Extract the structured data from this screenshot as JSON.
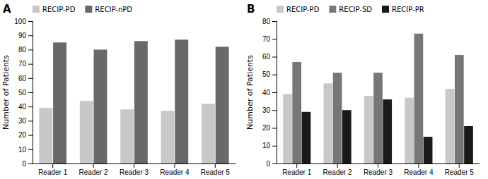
{
  "chart_data": [
    {
      "type": "bar",
      "title": "A",
      "categories": [
        "Reader 1",
        "Reader 2",
        "Reader 3",
        "Reader 4",
        "Reader 5"
      ],
      "series": [
        {
          "name": "RECIP-PD",
          "color": "#c8c8c8",
          "values": [
            39,
            44,
            38,
            37,
            42
          ]
        },
        {
          "name": "RECIP-nPD",
          "color": "#696969",
          "values": [
            85,
            80,
            86,
            87,
            82
          ]
        }
      ],
      "ylabel": "Number of Patients",
      "ylim": [
        0,
        100
      ],
      "yticks": [
        0,
        10,
        20,
        30,
        40,
        50,
        60,
        70,
        80,
        90,
        100
      ],
      "grid": false,
      "legend": "upper left"
    },
    {
      "type": "bar",
      "title": "B",
      "categories": [
        "Reader 1",
        "Reader 2",
        "Reader 3",
        "Reader 4",
        "Reader 5"
      ],
      "series": [
        {
          "name": "RECIP-PD",
          "color": "#c8c8c8",
          "values": [
            39,
            45,
            38,
            37,
            42
          ]
        },
        {
          "name": "RECIP-SD",
          "color": "#777777",
          "values": [
            57,
            51,
            51,
            73,
            61
          ]
        },
        {
          "name": "RECIP-PR",
          "color": "#1a1a1a",
          "values": [
            29,
            30,
            36,
            15,
            21
          ]
        }
      ],
      "ylabel": "Number of Patients",
      "ylim": [
        0,
        80
      ],
      "yticks": [
        0,
        10,
        20,
        30,
        40,
        50,
        60,
        70,
        80
      ],
      "grid": false,
      "legend": "upper left"
    }
  ]
}
